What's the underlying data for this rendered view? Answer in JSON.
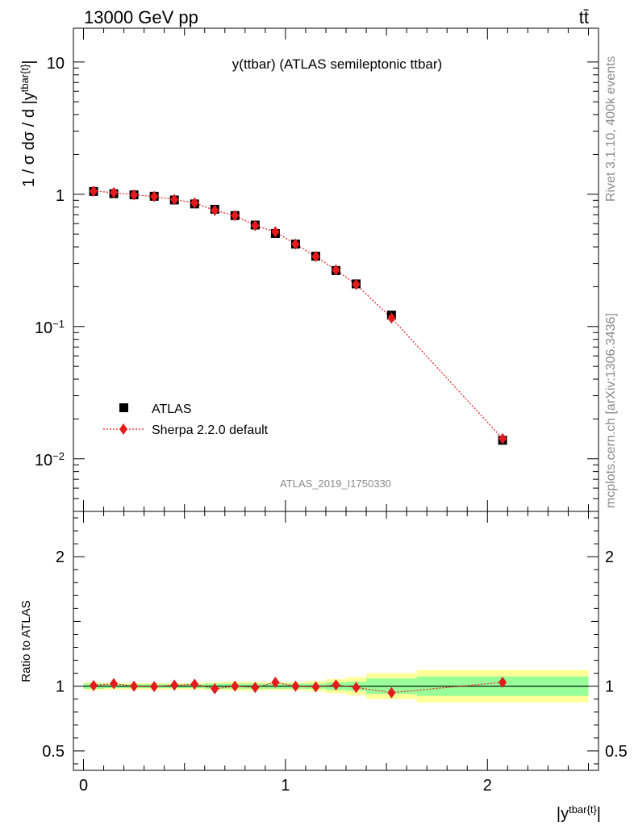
{
  "header": {
    "left": "13000 GeV pp",
    "right": "tt̄"
  },
  "side_labels": {
    "rivet": "Rivet 3.1.10,  400k events",
    "mcplots": "mcplots.cern.ch [arXiv:1306.3436]"
  },
  "chart_data": [
    {
      "type": "scatter",
      "title": "y(ttbar) (ATLAS semileptonic ttbar)",
      "watermark": "ATLAS_2019_I1750330",
      "ylabel": "1 / σ dσ / d |y^{tbar{t}}|",
      "yscale": "log",
      "xlim": [
        -0.05,
        2.55
      ],
      "ylim": [
        0.004,
        18
      ],
      "y_tick_labels": [
        "10^{-2}",
        "10^{-1}",
        "1",
        "10"
      ],
      "legend_placement": "lower-left",
      "series": [
        {
          "name": "ATLAS",
          "marker": "square",
          "color": "#000000",
          "x": [
            0.05,
            0.15,
            0.25,
            0.35,
            0.45,
            0.55,
            0.65,
            0.75,
            0.85,
            0.95,
            1.05,
            1.15,
            1.25,
            1.35,
            1.525,
            2.075
          ],
          "values": [
            1.05,
            1.01,
            0.99,
            0.965,
            0.905,
            0.845,
            0.77,
            0.69,
            0.585,
            0.505,
            0.42,
            0.34,
            0.265,
            0.21,
            0.122,
            0.0138
          ]
        },
        {
          "name": "Sherpa 2.2.0 default",
          "marker": "diamond",
          "line": "dotted",
          "color": "#e41a1c",
          "x": [
            0.05,
            0.15,
            0.25,
            0.35,
            0.45,
            0.55,
            0.65,
            0.75,
            0.85,
            0.95,
            1.05,
            1.15,
            1.25,
            1.35,
            1.525,
            2.075
          ],
          "values": [
            1.055,
            1.03,
            0.99,
            0.962,
            0.912,
            0.86,
            0.755,
            0.69,
            0.58,
            0.52,
            0.42,
            0.338,
            0.268,
            0.208,
            0.116,
            0.0142
          ]
        }
      ]
    },
    {
      "type": "scatter",
      "ylabel": "Ratio to ATLAS",
      "xlabel": "|y^{tbar{t}}|",
      "xlim": [
        -0.05,
        2.55
      ],
      "ylim": [
        0.35,
        2.35
      ],
      "x_ticks": [
        0,
        1,
        2
      ],
      "y_ticks": [
        0.5,
        1,
        2
      ],
      "bin_edges": [
        0.0,
        0.1,
        0.2,
        0.3,
        0.4,
        0.5,
        0.6,
        0.7,
        0.8,
        0.9,
        1.0,
        1.1,
        1.2,
        1.3,
        1.4,
        1.65,
        2.5
      ],
      "uncertainty_bands": [
        {
          "name": "stat",
          "color": "#99ff99",
          "half_width": [
            0.02,
            0.015,
            0.015,
            0.015,
            0.015,
            0.015,
            0.02,
            0.02,
            0.02,
            0.02,
            0.02,
            0.02,
            0.03,
            0.035,
            0.06,
            0.075
          ]
        },
        {
          "name": "total",
          "color": "#ffff99",
          "half_width": [
            0.03,
            0.025,
            0.025,
            0.025,
            0.025,
            0.025,
            0.03,
            0.035,
            0.035,
            0.03,
            0.03,
            0.04,
            0.055,
            0.07,
            0.1,
            0.125
          ]
        }
      ],
      "series": [
        {
          "name": "Sherpa 2.2.0 default",
          "marker": "diamond",
          "line": "dotted",
          "color": "#e41a1c",
          "x": [
            0.05,
            0.15,
            0.25,
            0.35,
            0.45,
            0.55,
            0.65,
            0.75,
            0.85,
            0.95,
            1.05,
            1.15,
            1.25,
            1.35,
            1.525,
            2.075
          ],
          "values": [
            1.005,
            1.02,
            1.0,
            0.997,
            1.008,
            1.015,
            0.98,
            1.0,
            0.99,
            1.03,
            1.0,
            0.995,
            1.01,
            0.99,
            0.95,
            1.03
          ]
        }
      ]
    }
  ]
}
